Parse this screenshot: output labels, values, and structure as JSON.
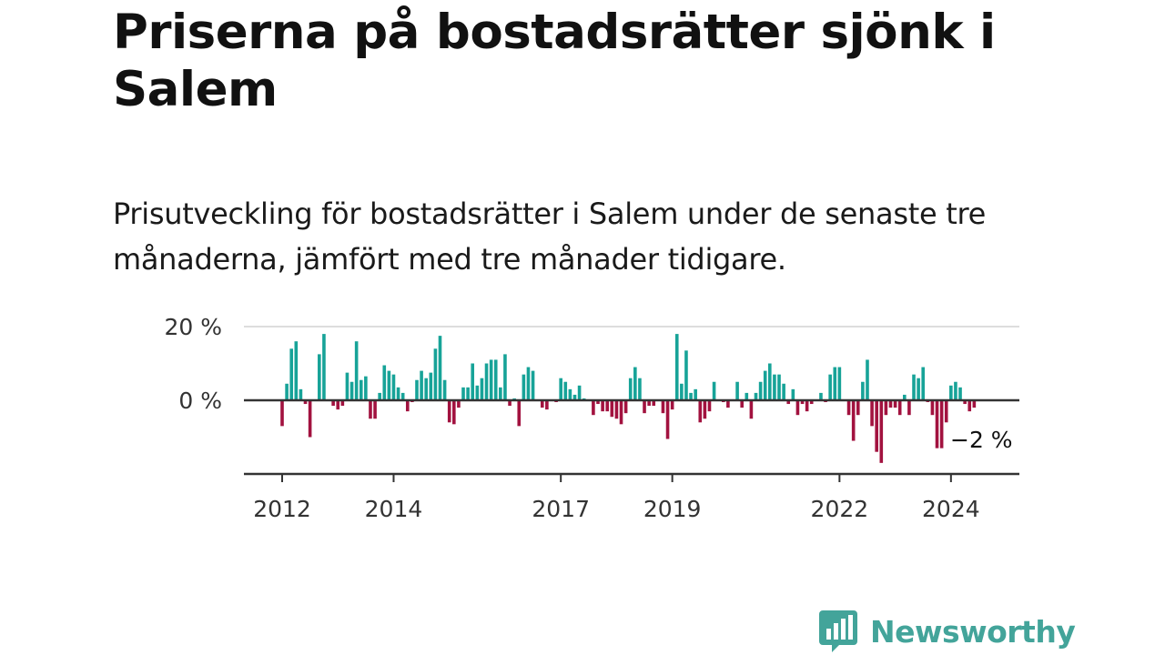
{
  "title": "Priserna på bostadsrätter sjönk i Salem",
  "subtitle": "Prisutveckling för bostadsrätter i Salem under de senaste tre månaderna, jämfört med tre månader tidigare.",
  "brand": {
    "name": "Newsworthy",
    "color": "#43a49a",
    "icon": "newsworthy-logo-icon"
  },
  "colors": {
    "positive": "#17a398",
    "negative": "#a2123f",
    "grid": "#dddddd",
    "axis": "#333333"
  },
  "chart_data": {
    "type": "bar",
    "title": "Prisutveckling för bostadsrätter i Salem",
    "xlabel": "",
    "ylabel": "",
    "ylim": [
      -20,
      20
    ],
    "yticks": [
      {
        "value": 0,
        "label": "0 %"
      },
      {
        "value": 20,
        "label": "20 %"
      }
    ],
    "xticks": [
      {
        "index": 0,
        "label": "2012"
      },
      {
        "index": 24,
        "label": "2014"
      },
      {
        "index": 60,
        "label": "2017"
      },
      {
        "index": 84,
        "label": "2019"
      },
      {
        "index": 120,
        "label": "2022"
      },
      {
        "index": 144,
        "label": "2024"
      }
    ],
    "start": "2012-01",
    "end_label": "−2 %",
    "values": [
      -7,
      4.5,
      14,
      16,
      3,
      -1,
      -10,
      0,
      12.5,
      18,
      0,
      -1.5,
      -2.5,
      -1.5,
      7.5,
      5,
      16,
      5.5,
      6.5,
      -5,
      -5,
      2,
      9.5,
      8,
      7,
      3.5,
      2,
      -3,
      -0.5,
      5.5,
      8,
      6,
      7.5,
      14,
      17.5,
      5.5,
      -6,
      -6.5,
      -2,
      3.5,
      3.5,
      10,
      4,
      6,
      10,
      11,
      11,
      3.5,
      12.5,
      -1.5,
      0.5,
      -7,
      7,
      9,
      8,
      0,
      -2,
      -2.5,
      0,
      -0.5,
      6,
      5,
      3,
      1.5,
      4,
      0.5,
      0,
      -4,
      -1,
      -3,
      -3,
      -4.5,
      -5,
      -6.5,
      -3.5,
      6,
      9,
      6,
      -3.5,
      -1.5,
      -1.5,
      0,
      -3.5,
      -10.5,
      -2.5,
      18,
      4.5,
      13.5,
      2,
      3,
      -6,
      -5,
      -3,
      5,
      0,
      -0.5,
      -2,
      0,
      5,
      -2,
      2,
      -5,
      2,
      5,
      8,
      10,
      7,
      7,
      4.5,
      -1,
      3,
      -4,
      -1,
      -3,
      -1,
      0,
      2,
      -0.5,
      7,
      9,
      9,
      0,
      -4,
      -11,
      -4,
      5,
      11,
      -7,
      -14,
      -17,
      -4,
      -2,
      -2,
      -4,
      1.5,
      -4,
      7,
      6,
      9,
      -0.5,
      -4,
      -13,
      -13,
      -6,
      4,
      5,
      3.5,
      -1,
      -3,
      -2
    ]
  }
}
